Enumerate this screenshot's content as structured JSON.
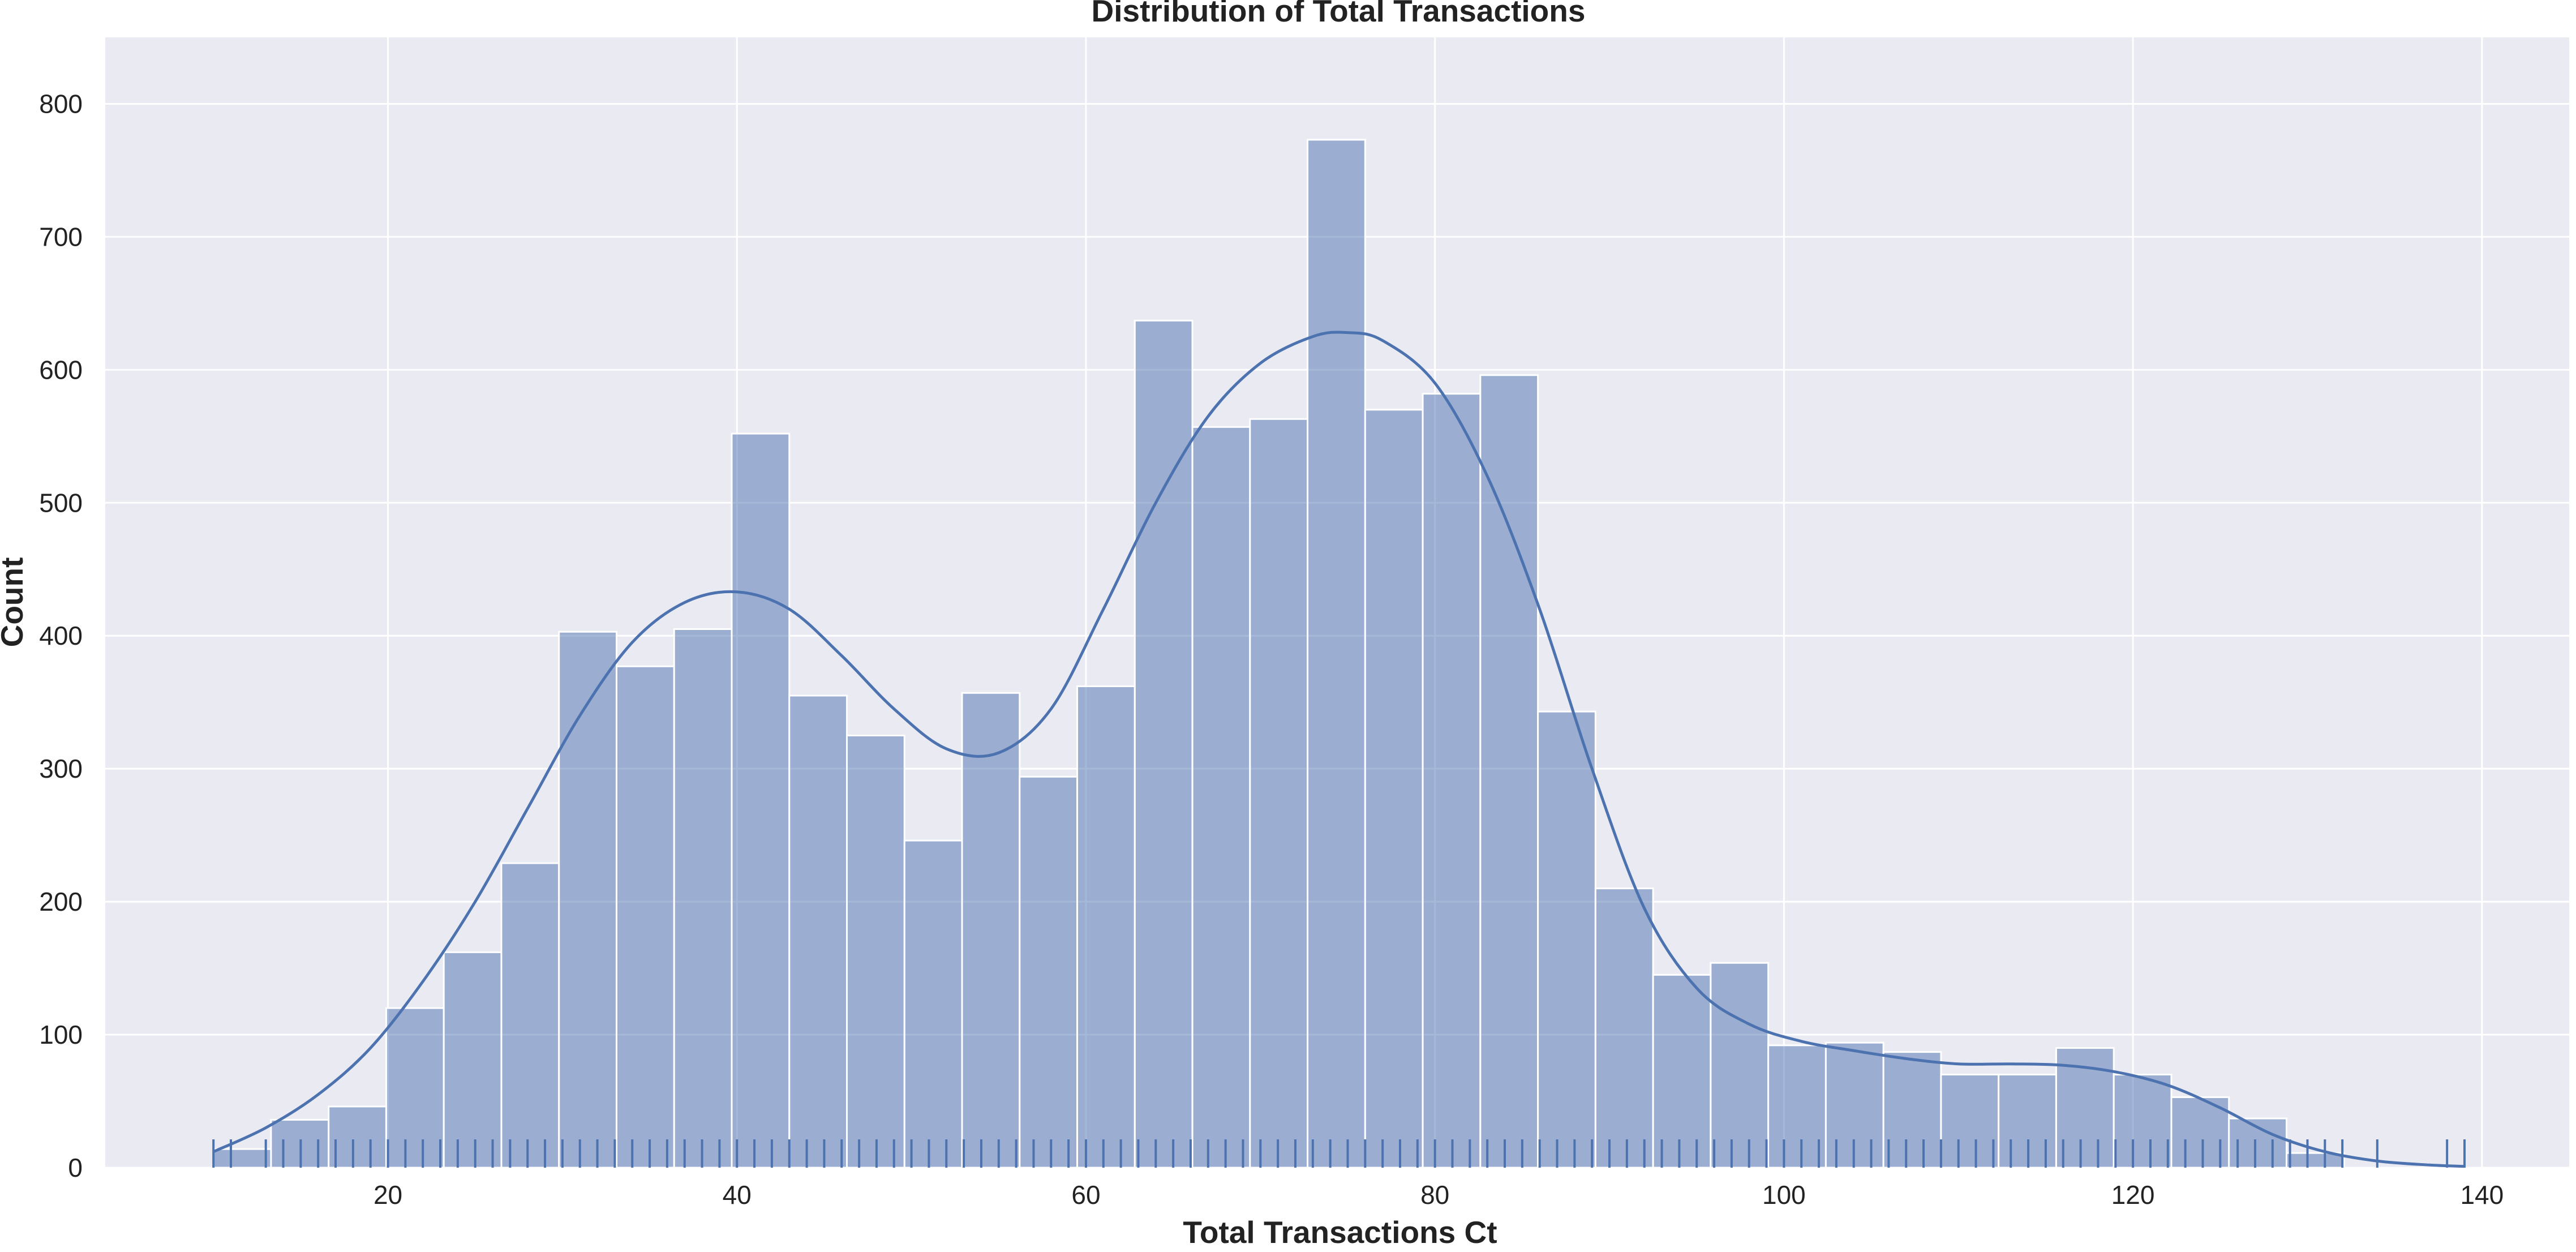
{
  "chart_data": {
    "type": "bar",
    "subtype": "histogram_with_kde_and_rug",
    "title": "Distribution of Total Transactions",
    "xlabel": "Total Transactions Ct",
    "ylabel": "Count",
    "xlim": [
      3.8,
      145
    ],
    "ylim": [
      0,
      850
    ],
    "xticks": [
      20,
      40,
      60,
      80,
      100,
      120,
      140
    ],
    "yticks": [
      0,
      100,
      200,
      300,
      400,
      500,
      600,
      700,
      800
    ],
    "grid": true,
    "legend": "none",
    "colors": {
      "bar": "#4c72b0",
      "kde": "#4c72b0",
      "rug": "#4c72b0",
      "plot_background": "#eaeaf2",
      "grid": "#ffffff"
    },
    "bin_start": 10,
    "bin_width": 3.3,
    "bins": [
      {
        "x0": 10.0,
        "x1": 13.3,
        "count": 14
      },
      {
        "x0": 13.3,
        "x1": 16.6,
        "count": 36
      },
      {
        "x0": 16.6,
        "x1": 19.9,
        "count": 46
      },
      {
        "x0": 19.9,
        "x1": 23.2,
        "count": 120
      },
      {
        "x0": 23.2,
        "x1": 26.5,
        "count": 162
      },
      {
        "x0": 26.5,
        "x1": 29.8,
        "count": 229
      },
      {
        "x0": 29.8,
        "x1": 33.1,
        "count": 403
      },
      {
        "x0": 33.1,
        "x1": 36.4,
        "count": 377
      },
      {
        "x0": 36.4,
        "x1": 39.7,
        "count": 405
      },
      {
        "x0": 39.7,
        "x1": 43.0,
        "count": 552
      },
      {
        "x0": 43.0,
        "x1": 46.3,
        "count": 355
      },
      {
        "x0": 46.3,
        "x1": 49.6,
        "count": 325
      },
      {
        "x0": 49.6,
        "x1": 52.9,
        "count": 246
      },
      {
        "x0": 52.9,
        "x1": 56.2,
        "count": 357
      },
      {
        "x0": 56.2,
        "x1": 59.5,
        "count": 294
      },
      {
        "x0": 59.5,
        "x1": 62.8,
        "count": 362
      },
      {
        "x0": 62.8,
        "x1": 66.1,
        "count": 637
      },
      {
        "x0": 66.1,
        "x1": 69.4,
        "count": 557
      },
      {
        "x0": 69.4,
        "x1": 72.7,
        "count": 563
      },
      {
        "x0": 72.7,
        "x1": 76.0,
        "count": 773
      },
      {
        "x0": 76.0,
        "x1": 79.3,
        "count": 570
      },
      {
        "x0": 79.3,
        "x1": 82.6,
        "count": 582
      },
      {
        "x0": 82.6,
        "x1": 85.9,
        "count": 596
      },
      {
        "x0": 85.9,
        "x1": 89.2,
        "count": 343
      },
      {
        "x0": 89.2,
        "x1": 92.5,
        "count": 210
      },
      {
        "x0": 92.5,
        "x1": 95.8,
        "count": 145
      },
      {
        "x0": 95.8,
        "x1": 99.1,
        "count": 154
      },
      {
        "x0": 99.1,
        "x1": 102.4,
        "count": 92
      },
      {
        "x0": 102.4,
        "x1": 105.7,
        "count": 94
      },
      {
        "x0": 105.7,
        "x1": 109.0,
        "count": 87
      },
      {
        "x0": 109.0,
        "x1": 112.3,
        "count": 70
      },
      {
        "x0": 112.3,
        "x1": 115.6,
        "count": 70
      },
      {
        "x0": 115.6,
        "x1": 118.9,
        "count": 90
      },
      {
        "x0": 118.9,
        "x1": 122.2,
        "count": 70
      },
      {
        "x0": 122.2,
        "x1": 125.5,
        "count": 53
      },
      {
        "x0": 125.5,
        "x1": 128.8,
        "count": 37
      },
      {
        "x0": 128.8,
        "x1": 132.1,
        "count": 11
      }
    ],
    "kde_curve": {
      "x": [
        10,
        13,
        16,
        19,
        22,
        25,
        28,
        31,
        34,
        37,
        40,
        43,
        46,
        49,
        52,
        55,
        58,
        61,
        64,
        67,
        70,
        73,
        75,
        77,
        80,
        83,
        86,
        89,
        92,
        95,
        98,
        101,
        104,
        107,
        110,
        113,
        116,
        119,
        122,
        125,
        128,
        131,
        134,
        137,
        139
      ],
      "y": [
        12,
        30,
        55,
        90,
        140,
        200,
        270,
        340,
        395,
        425,
        433,
        420,
        385,
        345,
        315,
        312,
        345,
        420,
        500,
        565,
        605,
        625,
        628,
        622,
        590,
        520,
        420,
        300,
        195,
        135,
        108,
        95,
        88,
        82,
        78,
        78,
        77,
        72,
        62,
        45,
        25,
        12,
        5,
        2,
        1
      ]
    },
    "rug_x": [
      10,
      11,
      13,
      14,
      15,
      16,
      17,
      18,
      19,
      20,
      21,
      22,
      23,
      24,
      25,
      26,
      27,
      28,
      29,
      30,
      31,
      32,
      33,
      34,
      35,
      36,
      37,
      38,
      39,
      40,
      41,
      42,
      43,
      44,
      45,
      46,
      47,
      48,
      49,
      50,
      51,
      52,
      53,
      54,
      55,
      56,
      57,
      58,
      59,
      60,
      61,
      62,
      63,
      64,
      65,
      66,
      67,
      68,
      69,
      70,
      71,
      72,
      73,
      74,
      75,
      76,
      77,
      78,
      79,
      80,
      81,
      82,
      83,
      84,
      85,
      86,
      87,
      88,
      89,
      90,
      91,
      92,
      93,
      94,
      95,
      96,
      97,
      98,
      99,
      100,
      101,
      102,
      103,
      104,
      105,
      106,
      107,
      108,
      109,
      110,
      111,
      112,
      113,
      114,
      115,
      116,
      117,
      118,
      119,
      120,
      121,
      122,
      123,
      124,
      125,
      126,
      127,
      128,
      129,
      130,
      131,
      132,
      134,
      138,
      139
    ]
  }
}
